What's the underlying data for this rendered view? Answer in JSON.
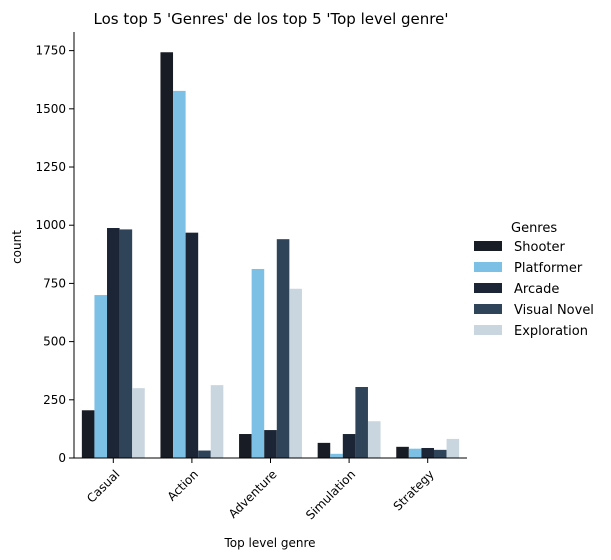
{
  "chart_data": {
    "type": "bar",
    "title": "Los top 5 'Genres' de los top 5 'Top level genre'",
    "xlabel": "Top level genre",
    "ylabel": "count",
    "categories": [
      "Casual",
      "Action",
      "Adventure",
      "Simulation",
      "Strategy"
    ],
    "ylim": [
      0,
      1830
    ],
    "yticks": [
      0,
      250,
      500,
      750,
      1000,
      1250,
      1500,
      1750
    ],
    "legend": {
      "title": "Genres",
      "placement": "right"
    },
    "series": [
      {
        "name": "Shooter",
        "color": "#181c24",
        "values": [
          205,
          1743,
          103,
          65,
          48
        ]
      },
      {
        "name": "Platformer",
        "color": "#7cc0e6",
        "values": [
          700,
          1577,
          812,
          18,
          40
        ]
      },
      {
        "name": "Arcade",
        "color": "#1b2535",
        "values": [
          988,
          968,
          120,
          103,
          43
        ]
      },
      {
        "name": "Visual Novel",
        "color": "#2f4459",
        "values": [
          982,
          32,
          940,
          305,
          35
        ]
      },
      {
        "name": "Exploration",
        "color": "#c9d6df",
        "values": [
          300,
          313,
          727,
          158,
          82
        ]
      }
    ]
  }
}
